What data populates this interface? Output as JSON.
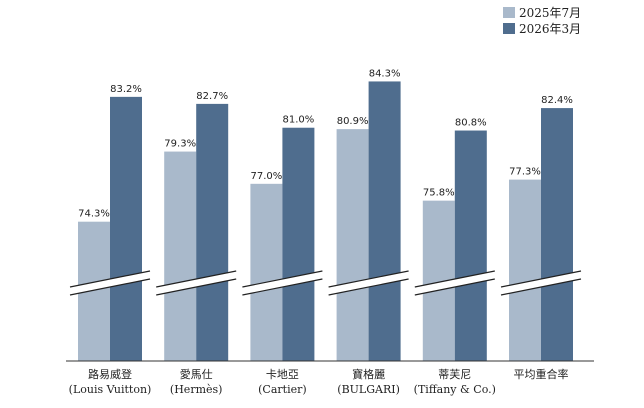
{
  "chart_data": {
    "type": "bar",
    "title": "",
    "xlabel": "",
    "ylabel": "",
    "ylim": [
      0,
      90
    ],
    "axis_break": true,
    "grid": false,
    "legend_position": "top-right",
    "categories": [
      {
        "name": "路易威登",
        "sub": "(Louis Vuitton)"
      },
      {
        "name": "愛馬仕",
        "sub": "(Hermès)"
      },
      {
        "name": "卡地亞",
        "sub": "(Cartier)"
      },
      {
        "name": "寶格麗",
        "sub": "(BULGARI)"
      },
      {
        "name": "蒂芙尼",
        "sub": "(Tiffany & Co.)"
      },
      {
        "name": "平均重合率",
        "sub": ""
      }
    ],
    "series": [
      {
        "name": "2025年7月",
        "color": "#a9b9cb",
        "values": [
          74.3,
          79.3,
          77.0,
          80.9,
          75.8,
          77.3
        ],
        "labels": [
          "74.3%",
          "79.3%",
          "77.0%",
          "80.9%",
          "75.8%",
          "77.3%"
        ]
      },
      {
        "name": "2026年3月",
        "color": "#4f6d8e",
        "values": [
          83.2,
          82.7,
          81.0,
          84.3,
          80.8,
          82.4
        ],
        "labels": [
          "83.2%",
          "82.7%",
          "81.0%",
          "84.3%",
          "80.8%",
          "82.4%"
        ]
      }
    ]
  }
}
